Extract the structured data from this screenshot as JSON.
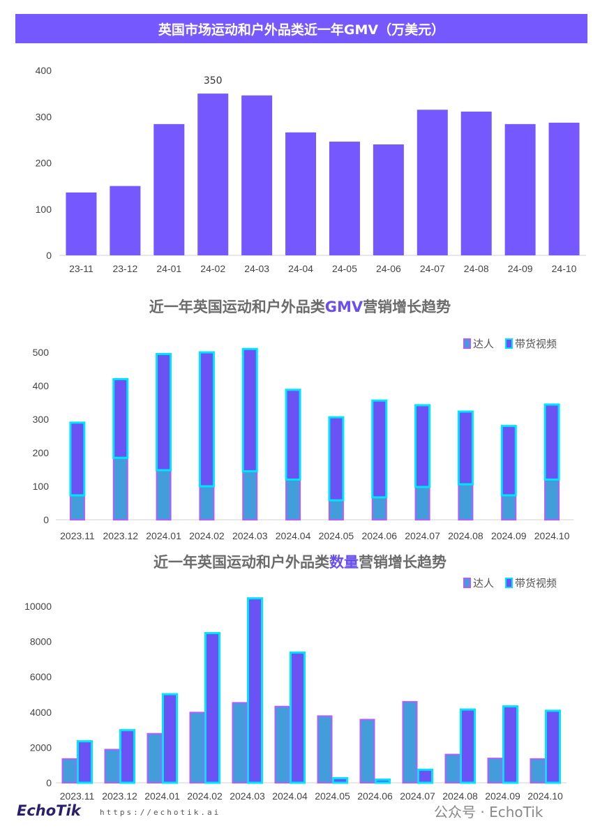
{
  "colors": {
    "banner": "#7559ff",
    "bar": "#7559ff",
    "daren_fill": "#449ddb",
    "daren_border": "#b45cff",
    "video_fill": "#6a52f5",
    "video_border": "#00e5ff"
  },
  "footer": {
    "logo": "EchoTik",
    "url": "https://echotik.ai",
    "watermark": "公众号 · EchoTik"
  },
  "chart_data": [
    {
      "type": "bar",
      "title": "英国市场运动和户外品类近一年GMV（万美元）",
      "categories": [
        "23-11",
        "23-12",
        "24-01",
        "24-02",
        "24-03",
        "24-04",
        "24-05",
        "24-06",
        "24-07",
        "24-08",
        "24-09",
        "24-10"
      ],
      "values": [
        136,
        150,
        284,
        350,
        346,
        266,
        246,
        240,
        315,
        311,
        284,
        287
      ],
      "data_labels": {
        "24-02": "350"
      },
      "yticks": [
        0,
        100,
        200,
        300,
        400
      ],
      "ylim": [
        0,
        400
      ],
      "grid": false
    },
    {
      "type": "bar",
      "stacked": true,
      "title_parts": [
        "近一年英国运动和户外品类",
        "GMV",
        "营销增长趋势"
      ],
      "categories": [
        "2023.11",
        "2023.12",
        "2024.01",
        "2024.02",
        "2024.03",
        "2024.04",
        "2024.05",
        "2024.06",
        "2024.07",
        "2024.08",
        "2024.09",
        "2024.10"
      ],
      "series": [
        {
          "name": "达人",
          "values": [
            73,
            185,
            148,
            100,
            145,
            120,
            58,
            67,
            98,
            106,
            73,
            120
          ]
        },
        {
          "name": "带货视频",
          "values": [
            217,
            235,
            347,
            400,
            365,
            268,
            248,
            289,
            244,
            217,
            207,
            224
          ]
        }
      ],
      "yticks": [
        0,
        100,
        200,
        300,
        400,
        500
      ],
      "ylim": [
        0,
        520
      ],
      "legend": "top-right",
      "grid": false
    },
    {
      "type": "bar",
      "stacked": false,
      "title_parts": [
        "近一年英国运动和户外品类",
        "数量",
        "营销增长趋势"
      ],
      "categories": [
        "2023.11",
        "2023.12",
        "2024.01",
        "2024.02",
        "2024.03",
        "2024.04",
        "2024.05",
        "2024.06",
        "2024.07",
        "2024.08",
        "2024.09",
        "2024.10"
      ],
      "series": [
        {
          "name": "达人",
          "values": [
            1350,
            1880,
            2780,
            3980,
            4530,
            4320,
            3780,
            3580,
            4590,
            1600,
            1380,
            1350
          ]
        },
        {
          "name": "带货视频",
          "values": [
            2350,
            2980,
            5020,
            8480,
            10450,
            7380,
            260,
            180,
            740,
            4150,
            4330,
            4080
          ]
        }
      ],
      "yticks": [
        0,
        2000,
        4000,
        6000,
        8000,
        10000
      ],
      "ylim": [
        0,
        10600
      ],
      "legend": "top-right",
      "grid": false
    }
  ]
}
